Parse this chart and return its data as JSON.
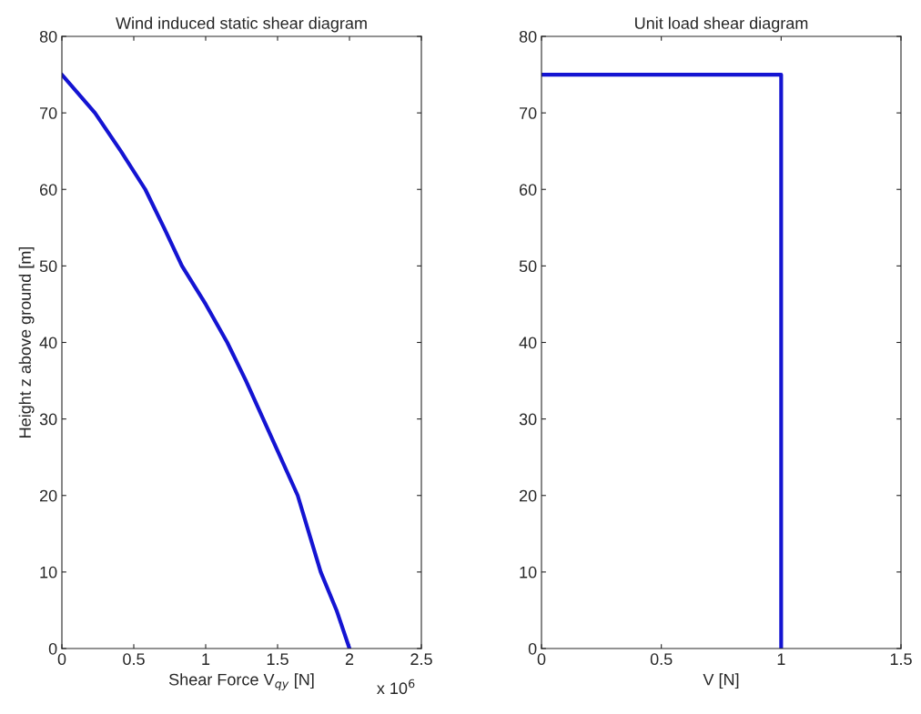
{
  "chart_data": [
    {
      "type": "line",
      "title": "Wind induced static shear diagram",
      "xlabel": "Shear Force V$_{qy}$ [N]",
      "ylabel": "Height z above ground [m]",
      "annotations": [
        "x 10$^{6}$"
      ],
      "x": [
        0,
        0.23,
        0.41,
        0.58,
        0.71,
        0.835,
        1.0,
        1.15,
        1.28,
        1.4,
        1.52,
        1.64,
        1.72,
        1.8,
        1.91,
        2.0
      ],
      "series": [
        {
          "color": "#1414d2",
          "values": [
            75,
            70,
            65,
            60,
            55,
            50,
            45,
            40,
            35,
            30,
            25,
            20,
            15,
            10,
            5,
            0
          ]
        }
      ],
      "xlim": [
        0,
        2.5
      ],
      "xticks": [
        0,
        0.5,
        1,
        1.5,
        2,
        2.5
      ],
      "ylim": [
        0,
        80
      ],
      "yticks": [
        0,
        10,
        20,
        30,
        40,
        50,
        60,
        70,
        80
      ],
      "grid": false,
      "legend": false
    },
    {
      "type": "line",
      "title": "Unit load shear diagram",
      "xlabel": "V [N]",
      "x": [
        0,
        1,
        1
      ],
      "series": [
        {
          "color": "#1414d2",
          "values": [
            75,
            75,
            0
          ]
        }
      ],
      "xlim": [
        0,
        1.5
      ],
      "xticks": [
        0,
        0.5,
        1,
        1.5
      ],
      "ylim": [
        0,
        80
      ],
      "yticks": [
        0,
        10,
        20,
        30,
        40,
        50,
        60,
        70,
        80
      ],
      "grid": false,
      "legend": false
    }
  ]
}
